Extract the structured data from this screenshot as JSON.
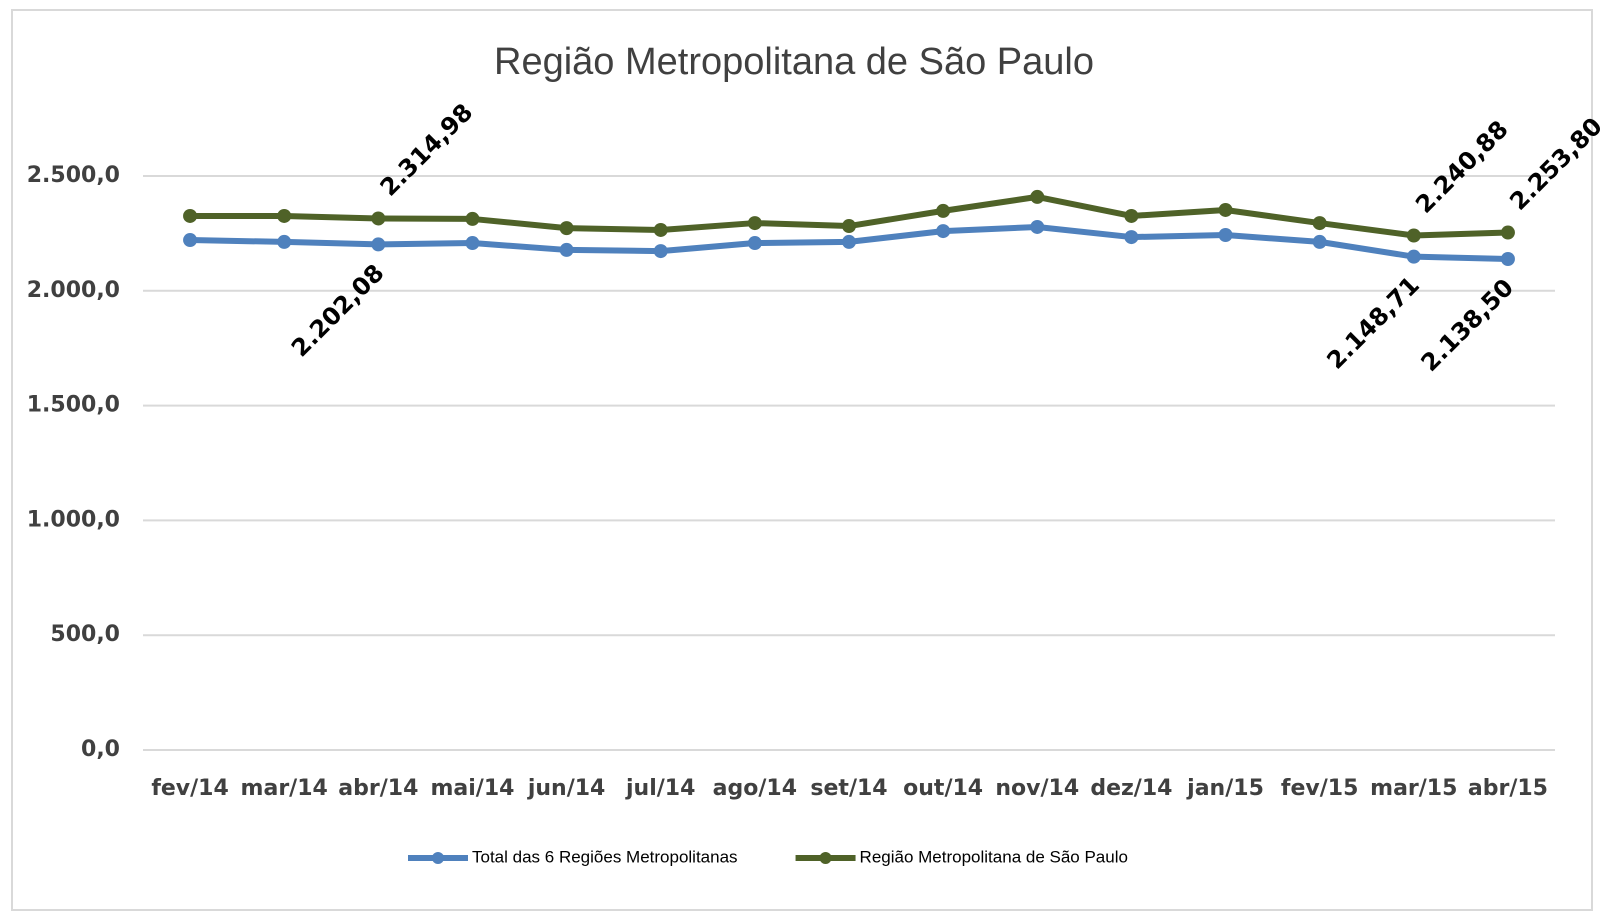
{
  "chart_data": {
    "type": "line",
    "title": "Região Metropolitana de São Paulo",
    "categories": [
      "fev/14",
      "mar/14",
      "abr/14",
      "mai/14",
      "jun/14",
      "jul/14",
      "ago/14",
      "set/14",
      "out/14",
      "nov/14",
      "dez/14",
      "jan/15",
      "fev/15",
      "mar/15",
      "abr/15"
    ],
    "series": [
      {
        "name": "Total das 6 Regiões Metropolitanas",
        "color": "#4f81bd",
        "values": [
          2221,
          2213,
          2202.08,
          2208,
          2178,
          2173,
          2208,
          2213,
          2260,
          2278,
          2234,
          2243,
          2213,
          2148.71,
          2138.5
        ],
        "value_labels": [
          null,
          null,
          "2.202,08",
          null,
          null,
          null,
          null,
          null,
          null,
          null,
          null,
          null,
          null,
          "2.148,71",
          "2.138,50"
        ]
      },
      {
        "name": "Região Metropolitana de São Paulo",
        "color": "#4f6228",
        "values": [
          2326,
          2326,
          2314.98,
          2313,
          2273,
          2265,
          2295,
          2282,
          2348,
          2409,
          2326,
          2352,
          2295,
          2240.88,
          2253.8
        ],
        "value_labels": [
          null,
          null,
          "2.314,98",
          null,
          null,
          null,
          null,
          null,
          null,
          null,
          null,
          null,
          null,
          "2.240,88",
          "2.253,80"
        ]
      }
    ],
    "ylim": [
      0,
      2500
    ],
    "yticks": [
      {
        "value": 0,
        "label": "0,0"
      },
      {
        "value": 500,
        "label": "500,0"
      },
      {
        "value": 1000,
        "label": "1.000,0"
      },
      {
        "value": 1500,
        "label": "1.500,0"
      },
      {
        "value": 2000,
        "label": "2.000,0"
      },
      {
        "value": 2500,
        "label": "2.500,0"
      }
    ],
    "grid": true,
    "legend": "bottom"
  }
}
